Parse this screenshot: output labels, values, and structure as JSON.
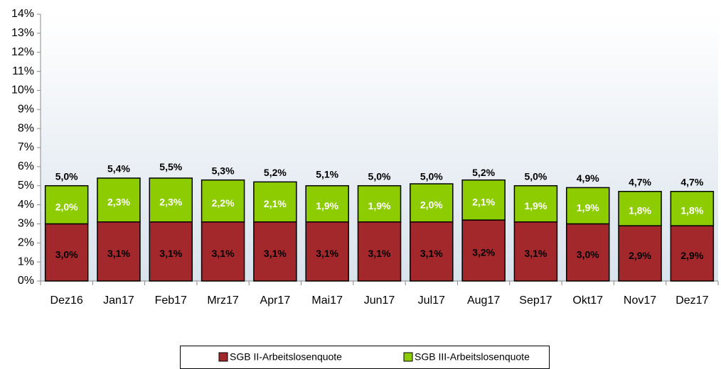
{
  "chart_data": {
    "type": "stacked_bar",
    "categories": [
      "Dez16",
      "Jan17",
      "Feb17",
      "Mrz17",
      "Apr17",
      "Mai17",
      "Jun17",
      "Jul17",
      "Aug17",
      "Sep17",
      "Okt17",
      "Nov17",
      "Dez17"
    ],
    "series": [
      {
        "name": "SGB II-Arbeitslosenquote",
        "color": "#a3282c",
        "label_color": "#000000",
        "values": [
          3.0,
          3.1,
          3.1,
          3.1,
          3.1,
          3.1,
          3.1,
          3.1,
          3.2,
          3.1,
          3.0,
          2.9,
          2.9
        ],
        "value_labels": [
          "3,0%",
          "3,1%",
          "3,1%",
          "3,1%",
          "3,1%",
          "3,1%",
          "3,1%",
          "3,1%",
          "3,2%",
          "3,1%",
          "3,0%",
          "2,9%",
          "2,9%"
        ]
      },
      {
        "name": "SGB III-Arbeitslosenquote",
        "color": "#8ccc00",
        "label_color": "#ffffff",
        "values": [
          2.0,
          2.3,
          2.3,
          2.2,
          2.1,
          1.9,
          1.9,
          2.0,
          2.1,
          1.9,
          1.9,
          1.8,
          1.8
        ],
        "value_labels": [
          "2,0%",
          "2,3%",
          "2,3%",
          "2,2%",
          "2,1%",
          "1,9%",
          "1,9%",
          "2,0%",
          "2,1%",
          "1,9%",
          "1,9%",
          "1,8%",
          "1,8%"
        ]
      }
    ],
    "totals": [
      5.0,
      5.4,
      5.5,
      5.3,
      5.2,
      5.1,
      5.0,
      5.0,
      5.2,
      5.0,
      4.9,
      4.7,
      4.7
    ],
    "total_labels": [
      "5,0%",
      "5,4%",
      "5,5%",
      "5,3%",
      "5,2%",
      "5,1%",
      "5,0%",
      "5,0%",
      "5,2%",
      "5,0%",
      "4,9%",
      "4,7%",
      "4,7%"
    ],
    "ylim": [
      0,
      14
    ],
    "yticks": [
      {
        "value": 0,
        "label": "0%"
      },
      {
        "value": 1,
        "label": "1%"
      },
      {
        "value": 2,
        "label": "2%"
      },
      {
        "value": 3,
        "label": "3%"
      },
      {
        "value": 4,
        "label": "4%"
      },
      {
        "value": 5,
        "label": "5%"
      },
      {
        "value": 6,
        "label": "6%"
      },
      {
        "value": 7,
        "label": "7%"
      },
      {
        "value": 8,
        "label": "8%"
      },
      {
        "value": 9,
        "label": "9%"
      },
      {
        "value": 10,
        "label": "10%"
      },
      {
        "value": 11,
        "label": "11%"
      },
      {
        "value": 12,
        "label": "12%"
      },
      {
        "value": 13,
        "label": "13%"
      },
      {
        "value": 14,
        "label": "14%"
      }
    ],
    "grid": false,
    "legend": "bottom"
  }
}
